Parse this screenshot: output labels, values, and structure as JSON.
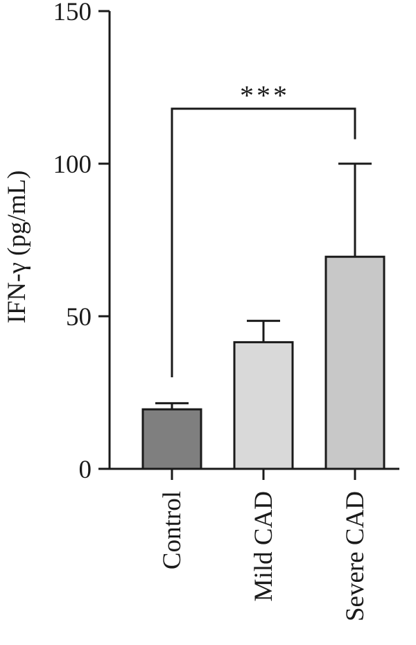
{
  "chart_data": {
    "type": "bar",
    "categories": [
      "Control",
      "Mild CAD",
      "Severe CAD"
    ],
    "values": [
      19.5,
      41.5,
      69.5
    ],
    "error_upper": [
      21.5,
      48.5,
      100
    ],
    "colors": [
      "#7f7f7f",
      "#d9d9d9",
      "#c8c8c8"
    ],
    "ylabel": "IFN-γ (pg/mL)",
    "ylim": [
      0,
      150
    ],
    "yticks": [
      0,
      50,
      100,
      150
    ],
    "ytick_labels": [
      "0",
      "50",
      "100",
      "150"
    ],
    "grid": false,
    "significance": {
      "from": "Control",
      "to": "Severe CAD",
      "left_start": 30,
      "right_start": 108,
      "bracket_y": 118,
      "label": "***"
    }
  }
}
